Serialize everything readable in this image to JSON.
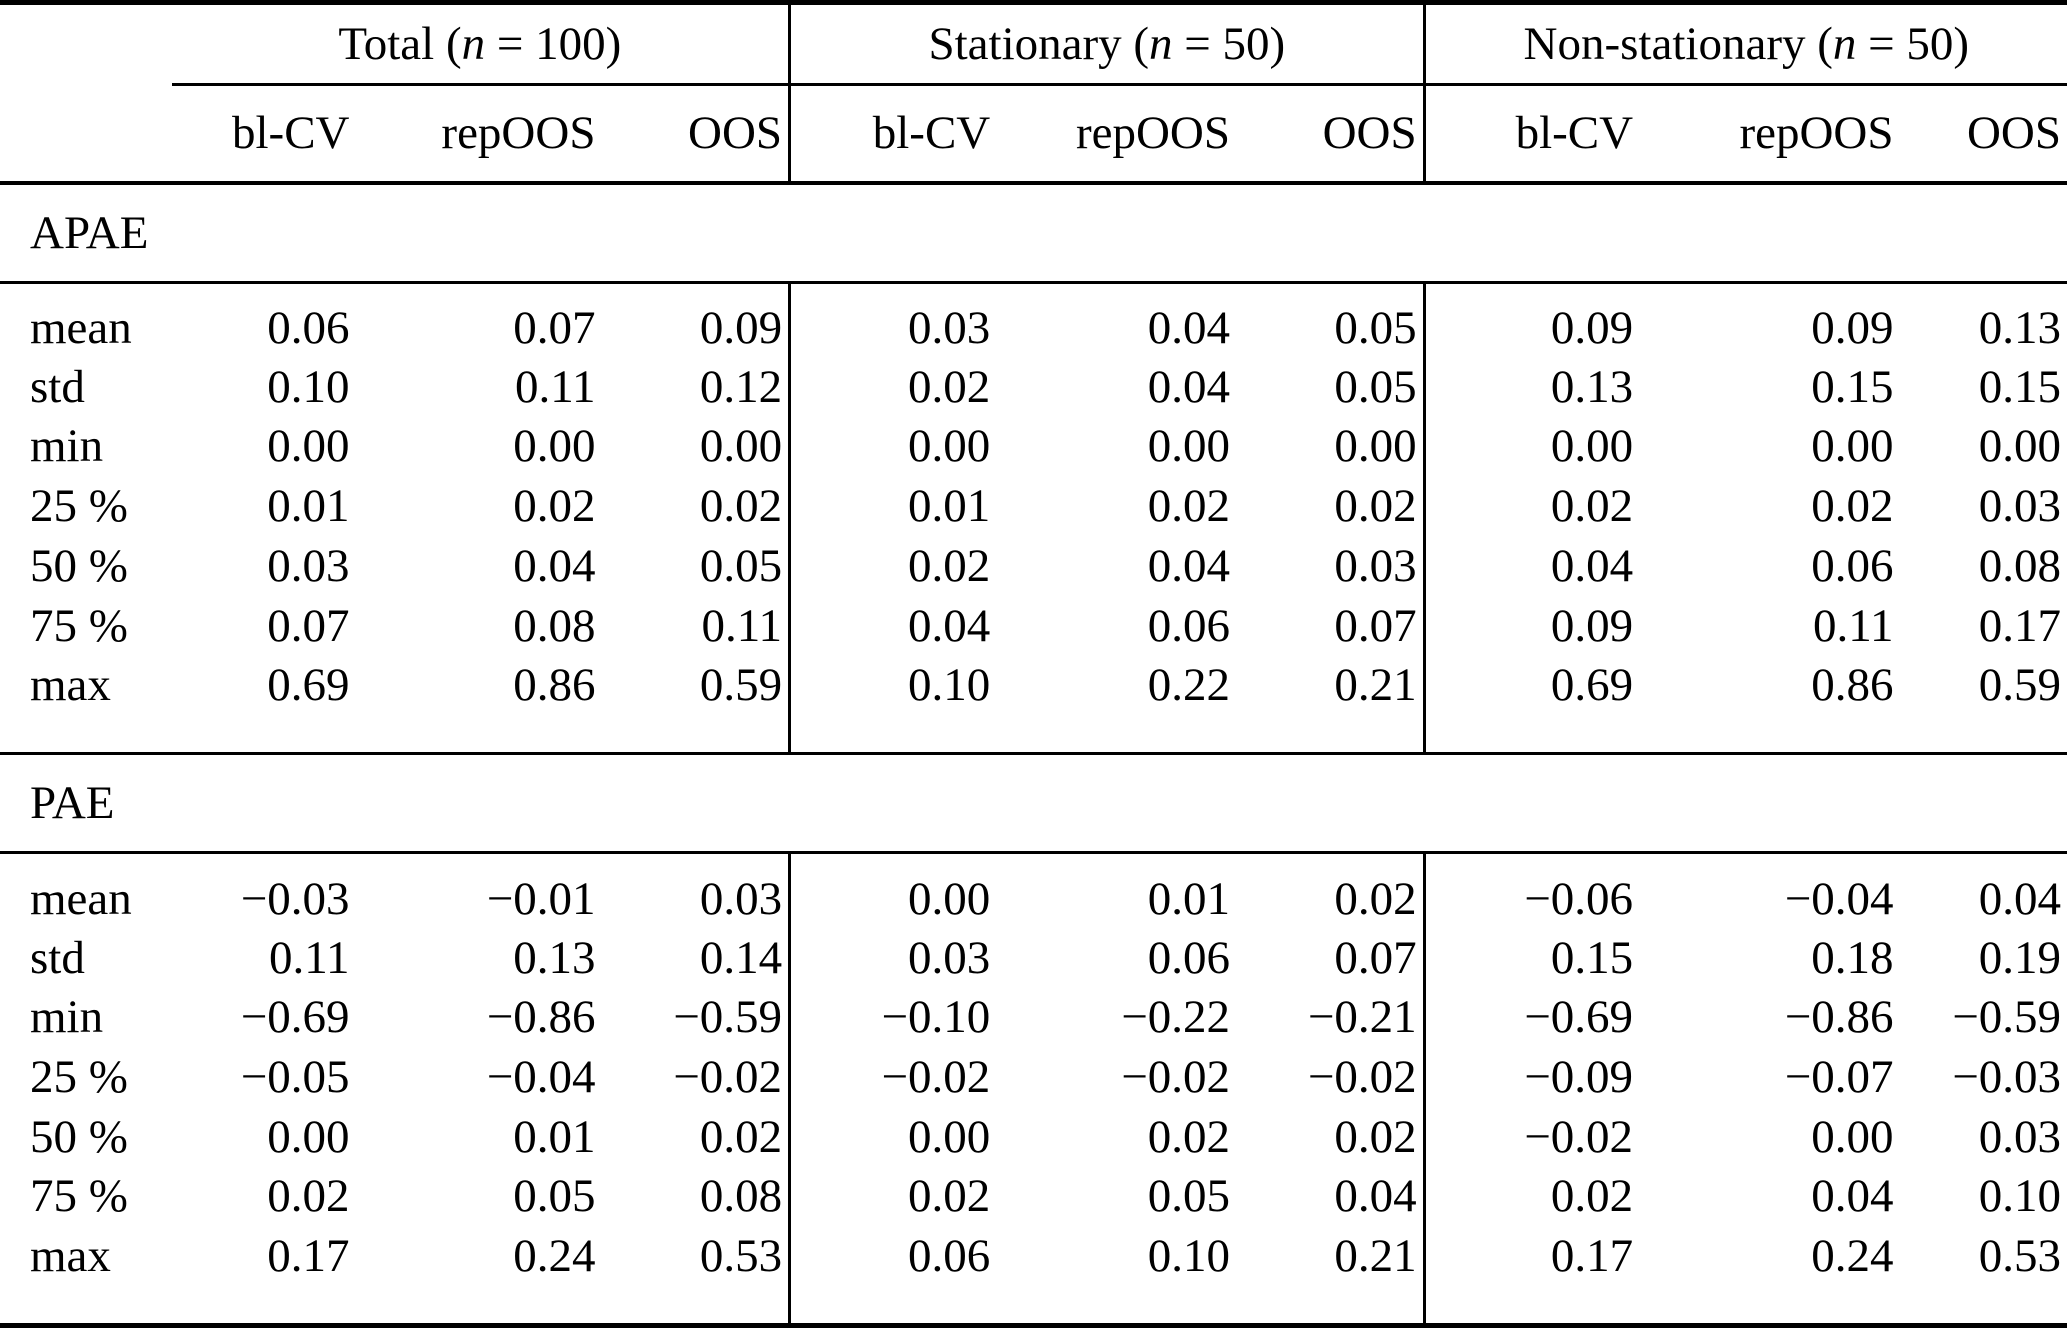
{
  "table": {
    "colors": {
      "text": "#000000",
      "background": "#ffffff",
      "rule": "#000000"
    },
    "groups": [
      {
        "pre": "Total (",
        "var": "n",
        "post": " = 100)"
      },
      {
        "pre": "Stationary (",
        "var": "n",
        "post": " = 50)"
      },
      {
        "pre": "Non-stationary (",
        "var": "n",
        "post": " = 50)"
      }
    ],
    "column_labels": [
      "bl-CV",
      "repOOS",
      "OOS",
      "bl-CV",
      "repOOS",
      "OOS",
      "bl-CV",
      "repOOS",
      "OOS"
    ],
    "sections": [
      {
        "label": "APAE",
        "rows": [
          {
            "label": "mean",
            "values": [
              "0.06",
              "0.07",
              "0.09",
              "0.03",
              "0.04",
              "0.05",
              "0.09",
              "0.09",
              "0.13"
            ]
          },
          {
            "label": "std",
            "values": [
              "0.10",
              "0.11",
              "0.12",
              "0.02",
              "0.04",
              "0.05",
              "0.13",
              "0.15",
              "0.15"
            ]
          },
          {
            "label": "min",
            "values": [
              "0.00",
              "0.00",
              "0.00",
              "0.00",
              "0.00",
              "0.00",
              "0.00",
              "0.00",
              "0.00"
            ]
          },
          {
            "label": "25 %",
            "values": [
              "0.01",
              "0.02",
              "0.02",
              "0.01",
              "0.02",
              "0.02",
              "0.02",
              "0.02",
              "0.03"
            ]
          },
          {
            "label": "50 %",
            "values": [
              "0.03",
              "0.04",
              "0.05",
              "0.02",
              "0.04",
              "0.03",
              "0.04",
              "0.06",
              "0.08"
            ]
          },
          {
            "label": "75 %",
            "values": [
              "0.07",
              "0.08",
              "0.11",
              "0.04",
              "0.06",
              "0.07",
              "0.09",
              "0.11",
              "0.17"
            ]
          },
          {
            "label": "max",
            "values": [
              "0.69",
              "0.86",
              "0.59",
              "0.10",
              "0.22",
              "0.21",
              "0.69",
              "0.86",
              "0.59"
            ]
          }
        ]
      },
      {
        "label": "PAE",
        "rows": [
          {
            "label": "mean",
            "values": [
              "−0.03",
              "−0.01",
              "0.03",
              "0.00",
              "0.01",
              "0.02",
              "−0.06",
              "−0.04",
              "0.04"
            ]
          },
          {
            "label": "std",
            "values": [
              "0.11",
              "0.13",
              "0.14",
              "0.03",
              "0.06",
              "0.07",
              "0.15",
              "0.18",
              "0.19"
            ]
          },
          {
            "label": "min",
            "values": [
              "−0.69",
              "−0.86",
              "−0.59",
              "−0.10",
              "−0.22",
              "−0.21",
              "−0.69",
              "−0.86",
              "−0.59"
            ]
          },
          {
            "label": "25 %",
            "values": [
              "−0.05",
              "−0.04",
              "−0.02",
              "−0.02",
              "−0.02",
              "−0.02",
              "−0.09",
              "−0.07",
              "−0.03"
            ]
          },
          {
            "label": "50 %",
            "values": [
              "0.00",
              "0.01",
              "0.02",
              "0.00",
              "0.02",
              "0.02",
              "−0.02",
              "0.00",
              "0.03"
            ]
          },
          {
            "label": "75 %",
            "values": [
              "0.02",
              "0.05",
              "0.08",
              "0.02",
              "0.05",
              "0.04",
              "0.02",
              "0.04",
              "0.10"
            ]
          },
          {
            "label": "max",
            "values": [
              "0.17",
              "0.24",
              "0.53",
              "0.06",
              "0.10",
              "0.21",
              "0.17",
              "0.24",
              "0.53"
            ]
          }
        ]
      }
    ]
  }
}
